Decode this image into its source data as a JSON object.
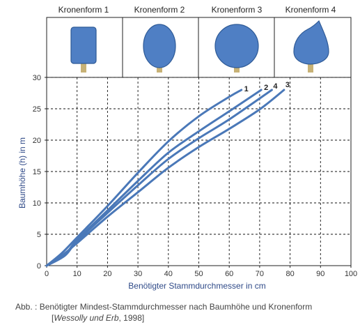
{
  "crowns": [
    {
      "title": "Kronenform 1",
      "shape": "rectangle-icon"
    },
    {
      "title": "Kronenform 2",
      "shape": "ellipse-icon"
    },
    {
      "title": "Kronenform 3",
      "shape": "circle-icon"
    },
    {
      "title": "Kronenform 4",
      "shape": "cone-icon"
    }
  ],
  "colors": {
    "line": "#4a78b8",
    "crown_fill": "#4f7fc4",
    "crown_stroke": "#2e5a96",
    "trunk": "#c8b276"
  },
  "chart_data": {
    "type": "line",
    "xlabel": "Benötigter Stammdurchmesser in cm",
    "ylabel": "Baumhöhe (h) in m",
    "xlim": [
      0,
      100
    ],
    "ylim": [
      0,
      30
    ],
    "xticks": [
      0,
      10,
      20,
      30,
      40,
      50,
      60,
      70,
      80,
      90,
      100
    ],
    "yticks": [
      0,
      5,
      10,
      15,
      20,
      25,
      30
    ],
    "grid": true,
    "series": [
      {
        "name": "1",
        "x": [
          0,
          5,
          10,
          20,
          30,
          40,
          50,
          60,
          64
        ],
        "y": [
          0,
          2,
          4.5,
          9.5,
          14.8,
          19.8,
          23.8,
          26.9,
          28.0
        ]
      },
      {
        "name": "2",
        "x": [
          0,
          6,
          10,
          20,
          30,
          40,
          50,
          60,
          70.5
        ],
        "y": [
          0,
          1.8,
          4.1,
          8.8,
          13.5,
          18.0,
          21.4,
          24.6,
          28.0
        ]
      },
      {
        "name": "4",
        "x": [
          0,
          6,
          10,
          20,
          30,
          40,
          50,
          60,
          74
        ],
        "y": [
          0,
          1.6,
          3.9,
          8.4,
          12.8,
          17.0,
          20.3,
          23.3,
          28.0
        ]
      },
      {
        "name": "3",
        "x": [
          0,
          5,
          10,
          20,
          30,
          40,
          50,
          60,
          70,
          78
        ],
        "y": [
          0,
          1.6,
          3.6,
          7.8,
          11.7,
          15.6,
          18.9,
          21.8,
          24.9,
          28.0
        ]
      }
    ]
  },
  "caption": {
    "main": "Abb. : Benötigter Mindest-Stammdurchmesser nach Baumhöhe und Kronenform",
    "source_open": "[",
    "source_authors": "Wessolly und Erb",
    "source_rest": ", 1998]"
  }
}
